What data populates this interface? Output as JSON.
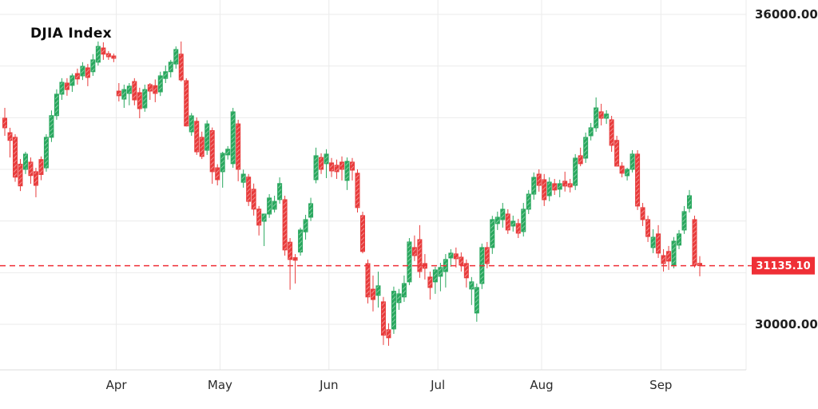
{
  "title": "DJIA Index",
  "colors": {
    "bull": "#2aa85f",
    "bear": "#e83c3c",
    "last_price": "#ef2f36",
    "grid": "#ebebeb",
    "axis_line": "#dcdcdc",
    "axis_text": "#1f1f1f",
    "background": "#ffffff",
    "badge_text": "#ffffff"
  },
  "last_price": {
    "label": "31135.10",
    "value": 31135.1
  },
  "y_axis": {
    "labels": [
      {
        "text": "36000.00",
        "value": 36000
      },
      {
        "text": "30000.00",
        "value": 30000
      }
    ]
  },
  "x_axis": {
    "labels": [
      "Apr",
      "May",
      "Jun",
      "Jul",
      "Aug",
      "Sep"
    ]
  },
  "chart_data": {
    "type": "candlestick",
    "title": "DJIA Index",
    "ylabel": "",
    "xlabel": "",
    "ylim": [
      29120,
      36280
    ],
    "grid": true,
    "y_gridline_values": [
      36000,
      35000,
      34000,
      33000,
      32000,
      31000,
      30000
    ],
    "y_tick_labels": [
      "36000.00",
      "30000.00"
    ],
    "y_tick_values": [
      36000,
      30000
    ],
    "last_price_line": {
      "value": 31135.1,
      "style": "dashed",
      "color": "#ef2f36",
      "label": "31135.10"
    },
    "months": [
      {
        "label": "Apr",
        "start_index": 22
      },
      {
        "label": "May",
        "start_index": 42
      },
      {
        "label": "Jun",
        "start_index": 63
      },
      {
        "label": "Jul",
        "start_index": 84
      },
      {
        "label": "Aug",
        "start_index": 104
      },
      {
        "label": "Sep",
        "start_index": 127
      }
    ],
    "date_format": "2022-MM-DD",
    "columns": [
      "date",
      "open",
      "high",
      "low",
      "close"
    ],
    "candles": [
      [
        "03-02",
        33990,
        34190,
        33650,
        33805
      ],
      [
        "03-03",
        33710,
        33805,
        33230,
        33560
      ],
      [
        "03-04",
        33620,
        33680,
        32760,
        32850
      ],
      [
        "03-07",
        33100,
        33200,
        32580,
        32680
      ],
      [
        "03-08",
        33000,
        33340,
        32910,
        33295
      ],
      [
        "03-09",
        33140,
        33230,
        32720,
        32880
      ],
      [
        "03-10",
        32955,
        33030,
        32460,
        32690
      ],
      [
        "03-11",
        33190,
        33250,
        32790,
        32900
      ],
      [
        "03-14",
        33030,
        33680,
        32955,
        33620
      ],
      [
        "03-15",
        33620,
        34140,
        33530,
        34040
      ],
      [
        "03-16",
        34040,
        34550,
        33960,
        34455
      ],
      [
        "03-17",
        34455,
        34765,
        34345,
        34685
      ],
      [
        "03-18",
        34670,
        34765,
        34425,
        34545
      ],
      [
        "03-21",
        34625,
        34855,
        34500,
        34810
      ],
      [
        "03-22",
        34855,
        34950,
        34640,
        34750
      ],
      [
        "03-23",
        34810,
        35075,
        34730,
        34995
      ],
      [
        "03-24",
        34965,
        35040,
        34610,
        34780
      ],
      [
        "03-25",
        34890,
        35230,
        34810,
        35120
      ],
      [
        "03-28",
        35075,
        35475,
        35010,
        35380
      ],
      [
        "03-29",
        35350,
        35460,
        35120,
        35230
      ],
      [
        "03-30",
        35240,
        35290,
        35120,
        35180
      ],
      [
        "03-31",
        35195,
        35240,
        35075,
        35150
      ],
      [
        "04-01",
        34515,
        34670,
        34315,
        34425
      ],
      [
        "04-04",
        34360,
        34640,
        34190,
        34545
      ],
      [
        "04-05",
        34470,
        34670,
        34240,
        34610
      ],
      [
        "04-06",
        34700,
        34765,
        34240,
        34345
      ],
      [
        "04-07",
        34485,
        34580,
        33990,
        34175
      ],
      [
        "04-08",
        34190,
        34640,
        34115,
        34545
      ],
      [
        "04-11",
        34640,
        34670,
        34345,
        34515
      ],
      [
        "04-12",
        34620,
        34740,
        34300,
        34470
      ],
      [
        "04-13",
        34500,
        34890,
        34420,
        34810
      ],
      [
        "04-14",
        34760,
        35010,
        34670,
        34890
      ],
      [
        "04-18",
        34890,
        35120,
        34780,
        35075
      ],
      [
        "04-19",
        35040,
        35380,
        34950,
        35320
      ],
      [
        "04-20",
        35230,
        35475,
        34700,
        34732
      ],
      [
        "04-21",
        34717,
        34765,
        33830,
        33840
      ],
      [
        "04-22",
        33727,
        34090,
        33650,
        34036
      ],
      [
        "04-25",
        33930,
        34005,
        33280,
        33340
      ],
      [
        "04-26",
        33620,
        33730,
        33200,
        33250
      ],
      [
        "04-27",
        33370,
        33950,
        33280,
        33880
      ],
      [
        "04-28",
        33750,
        33810,
        32720,
        32955
      ],
      [
        "04-29",
        33030,
        33100,
        32690,
        32800
      ],
      [
        "05-02",
        32955,
        33340,
        32645,
        33310
      ],
      [
        "05-03",
        33280,
        33450,
        33190,
        33390
      ],
      [
        "05-04",
        33110,
        34190,
        33030,
        34114
      ],
      [
        "05-05",
        33880,
        33960,
        32770,
        33000
      ],
      [
        "05-06",
        32750,
        32995,
        32645,
        32907
      ],
      [
        "05-09",
        32850,
        32910,
        32290,
        32380
      ],
      [
        "05-10",
        32615,
        32725,
        32105,
        32230
      ],
      [
        "05-11",
        32230,
        32290,
        31720,
        31920
      ],
      [
        "05-12",
        31995,
        32090,
        31515,
        32135
      ],
      [
        "05-13",
        32135,
        32520,
        32060,
        32445
      ],
      [
        "05-16",
        32228,
        32490,
        32165,
        32380
      ],
      [
        "05-17",
        32415,
        32845,
        32335,
        32725
      ],
      [
        "05-18",
        32413,
        32490,
        31330,
        31440
      ],
      [
        "05-19",
        31590,
        31670,
        30670,
        31255
      ],
      [
        "05-20",
        31290,
        31360,
        30790,
        31240
      ],
      [
        "05-23",
        31400,
        31870,
        31330,
        31826
      ],
      [
        "05-24",
        31790,
        32120,
        31640,
        32027
      ],
      [
        "05-25",
        32073,
        32450,
        32000,
        32336
      ],
      [
        "05-26",
        32800,
        33420,
        32730,
        33264
      ],
      [
        "05-27",
        33230,
        33310,
        32910,
        33000
      ],
      [
        "05-31",
        33110,
        33390,
        32830,
        33295
      ],
      [
        "06-01",
        33125,
        33220,
        32850,
        32970
      ],
      [
        "06-02",
        33080,
        33190,
        32815,
        32955
      ],
      [
        "06-03",
        33140,
        33250,
        32785,
        33000
      ],
      [
        "06-06",
        32785,
        33230,
        32600,
        33155
      ],
      [
        "06-07",
        33140,
        33220,
        32785,
        32985
      ],
      [
        "06-08",
        32925,
        33000,
        32165,
        32260
      ],
      [
        "06-09",
        32105,
        32180,
        31375,
        31410
      ],
      [
        "06-10",
        31175,
        31255,
        30405,
        30530
      ],
      [
        "06-13",
        30680,
        30945,
        30250,
        30480
      ],
      [
        "06-14",
        30560,
        31020,
        30325,
        30745
      ],
      [
        "06-15",
        30435,
        30530,
        29600,
        29790
      ],
      [
        "06-16",
        29895,
        30020,
        29585,
        29740
      ],
      [
        "06-17",
        29910,
        30730,
        29815,
        30640
      ],
      [
        "06-21",
        30420,
        30685,
        30280,
        30590
      ],
      [
        "06-22",
        30530,
        30945,
        30435,
        30790
      ],
      [
        "06-23",
        30822,
        31670,
        30760,
        31594
      ],
      [
        "06-24",
        31486,
        31720,
        31225,
        31331
      ],
      [
        "06-27",
        31640,
        31920,
        30900,
        31022
      ],
      [
        "06-28",
        31177,
        31360,
        30868,
        31085
      ],
      [
        "06-29",
        30915,
        31020,
        30480,
        30713
      ],
      [
        "06-30",
        30822,
        31115,
        30590,
        31053
      ],
      [
        "07-01",
        30930,
        31190,
        30640,
        31100
      ],
      [
        "07-05",
        31022,
        31360,
        30713,
        31255
      ],
      [
        "07-06",
        31285,
        31455,
        31115,
        31378
      ],
      [
        "07-07",
        31363,
        31486,
        31100,
        31270
      ],
      [
        "07-08",
        31300,
        31393,
        31022,
        31146
      ],
      [
        "07-11",
        31177,
        31255,
        30713,
        30900
      ],
      [
        "07-12",
        30683,
        30915,
        30374,
        30822
      ],
      [
        "07-13",
        30219,
        30790,
        30050,
        30713
      ],
      [
        "07-14",
        30790,
        31563,
        30683,
        31486
      ],
      [
        "07-15",
        31486,
        31594,
        31085,
        31177
      ],
      [
        "07-18",
        31486,
        32100,
        31363,
        32027
      ],
      [
        "07-19",
        31950,
        32182,
        31826,
        32073
      ],
      [
        "07-20",
        32027,
        32350,
        31872,
        32228
      ],
      [
        "07-21",
        32135,
        32228,
        31750,
        31826
      ],
      [
        "07-22",
        31903,
        32104,
        31795,
        31996
      ],
      [
        "07-25",
        31950,
        32042,
        31670,
        31764
      ],
      [
        "07-26",
        31795,
        32350,
        31700,
        32228
      ],
      [
        "07-27",
        32228,
        32600,
        32135,
        32520
      ],
      [
        "07-28",
        32520,
        32940,
        32413,
        32845
      ],
      [
        "07-29",
        32907,
        33000,
        32568,
        32690
      ],
      [
        "08-01",
        32800,
        32910,
        32290,
        32413
      ],
      [
        "08-02",
        32490,
        32845,
        32383,
        32753
      ],
      [
        "08-03",
        32723,
        32815,
        32505,
        32600
      ],
      [
        "08-04",
        32615,
        32800,
        32460,
        32723
      ],
      [
        "08-05",
        32770,
        32955,
        32570,
        32677
      ],
      [
        "08-08",
        32723,
        32815,
        32553,
        32660
      ],
      [
        "08-09",
        32690,
        33295,
        32600,
        33217
      ],
      [
        "08-10",
        33264,
        33420,
        33060,
        33110
      ],
      [
        "08-11",
        33217,
        33712,
        33125,
        33619
      ],
      [
        "08-12",
        33650,
        33898,
        33560,
        33805
      ],
      [
        "08-15",
        33805,
        34392,
        33727,
        34190
      ],
      [
        "08-16",
        34114,
        34269,
        33850,
        33990
      ],
      [
        "08-17",
        33990,
        34145,
        33880,
        34070
      ],
      [
        "08-18",
        33960,
        34036,
        33340,
        33465
      ],
      [
        "08-19",
        33560,
        33650,
        33060,
        33063
      ],
      [
        "08-22",
        33063,
        33140,
        32845,
        32925
      ],
      [
        "08-23",
        32877,
        33030,
        32785,
        33000
      ],
      [
        "08-24",
        33000,
        33372,
        32940,
        33295
      ],
      [
        "08-25",
        33295,
        33372,
        32213,
        32290
      ],
      [
        "08-26",
        32259,
        32350,
        31903,
        32027
      ],
      [
        "08-29",
        32027,
        32104,
        31594,
        31700
      ],
      [
        "08-30",
        31486,
        31840,
        31378,
        31686
      ],
      [
        "08-31",
        31750,
        31920,
        31285,
        31378
      ],
      [
        "09-01",
        31331,
        31455,
        31022,
        31177
      ],
      [
        "09-02",
        31410,
        31517,
        31053,
        31224
      ],
      [
        "09-06",
        31146,
        31690,
        31085,
        31610
      ],
      [
        "09-07",
        31533,
        31826,
        31455,
        31750
      ],
      [
        "09-08",
        31826,
        32290,
        31750,
        32182
      ],
      [
        "09-09",
        32244,
        32600,
        32166,
        32490
      ],
      [
        "09-12",
        32027,
        32104,
        31100,
        31146
      ],
      [
        "09-13",
        31180,
        31320,
        30930,
        31135.1
      ]
    ]
  }
}
